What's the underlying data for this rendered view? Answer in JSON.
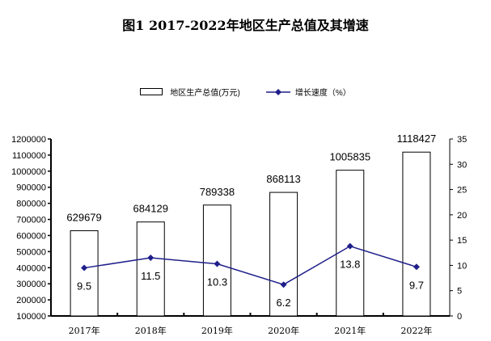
{
  "title": "图1  2017-2022年地区生产总值及其增速",
  "chart_data": {
    "type": "bar+line",
    "categories": [
      "2017年",
      "2018年",
      "2019年",
      "2020年",
      "2021年",
      "2022年"
    ],
    "series": [
      {
        "name": "地区生产总值(万元)",
        "type": "bar",
        "axis": "left",
        "values": [
          629679,
          684129,
          789338,
          868113,
          1005835,
          1118427
        ],
        "labels": [
          "629679",
          "684129",
          "789338",
          "868113",
          "1005835",
          "1118427"
        ],
        "color": "#ffffff"
      },
      {
        "name": "增长速度（%）",
        "type": "line",
        "axis": "right",
        "values": [
          9.5,
          11.5,
          10.3,
          6.2,
          13.8,
          9.7
        ],
        "labels": [
          "9.5",
          "11.5",
          "10.3",
          "6.2",
          "13.8",
          "9.7"
        ],
        "color": "#1f1f8a"
      }
    ],
    "left_axis": {
      "ylim": [
        100000,
        1200000
      ],
      "ticks": [
        "100000",
        "200000",
        "300000",
        "400000",
        "500000",
        "600000",
        "700000",
        "800000",
        "900000",
        "1000000",
        "1100000",
        "1200000"
      ]
    },
    "right_axis": {
      "ylim": [
        0,
        35
      ],
      "ticks": [
        "0",
        "5",
        "10",
        "15",
        "20",
        "25",
        "30",
        "35"
      ]
    },
    "legend": "top",
    "grid": false
  }
}
